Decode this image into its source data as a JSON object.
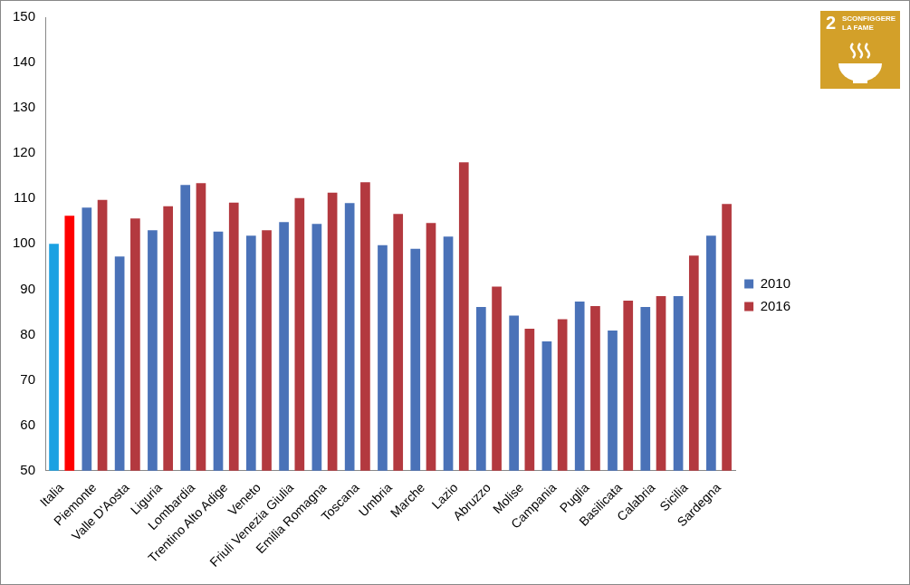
{
  "chart_data": {
    "type": "bar",
    "categories": [
      "Italia",
      "Piemonte",
      "Valle D'Aosta",
      "Liguria",
      "Lombardia",
      "Trentino Alto Adige",
      "Veneto",
      "Friuli Venezia Giulia",
      "Emilia Romagna",
      "Toscana",
      "Umbria",
      "Marche",
      "Lazio",
      "Abruzzo",
      "Molise",
      "Campania",
      "Puglia",
      "Basilicata",
      "Calabria",
      "Sicilia",
      "Sardegna"
    ],
    "series": [
      {
        "name": "2010",
        "color": "#4a72b8",
        "colors": [
          "#1ba1e2",
          "#4a72b8",
          "#4a72b8",
          "#4a72b8",
          "#4a72b8",
          "#4a72b8",
          "#4a72b8",
          "#4a72b8",
          "#4a72b8",
          "#4a72b8",
          "#4a72b8",
          "#4a72b8",
          "#4a72b8",
          "#4a72b8",
          "#4a72b8",
          "#4a72b8",
          "#4a72b8",
          "#4a72b8",
          "#4a72b8",
          "#4a72b8",
          "#4a72b8"
        ],
        "values": [
          100,
          108,
          97.2,
          103,
          113,
          102.7,
          101.8,
          104.8,
          104.4,
          109,
          99.7,
          98.9,
          101.6,
          86.1,
          84.2,
          78.5,
          87.3,
          80.9,
          86.1,
          88.5,
          101.8
        ]
      },
      {
        "name": "2016",
        "color": "#b3393f",
        "colors": [
          "#ff0000",
          "#b3393f",
          "#b3393f",
          "#b3393f",
          "#b3393f",
          "#b3393f",
          "#b3393f",
          "#b3393f",
          "#b3393f",
          "#b3393f",
          "#b3393f",
          "#b3393f",
          "#b3393f",
          "#b3393f",
          "#b3393f",
          "#b3393f",
          "#b3393f",
          "#b3393f",
          "#b3393f",
          "#b3393f",
          "#b3393f"
        ],
        "values": [
          106.2,
          109.7,
          105.6,
          108.3,
          113.4,
          109.1,
          103,
          110.1,
          111.3,
          113.6,
          106.6,
          104.6,
          118,
          90.6,
          81.3,
          83.4,
          86.3,
          87.5,
          88.5,
          97.4,
          108.8
        ]
      }
    ],
    "ylim": [
      50,
      150
    ],
    "yticks": [
      50,
      60,
      70,
      80,
      90,
      100,
      110,
      120,
      130,
      140,
      150
    ],
    "grid": false,
    "legend": "right",
    "annotations": [
      "2",
      "SCONFIGGERE LA FAME"
    ]
  }
}
